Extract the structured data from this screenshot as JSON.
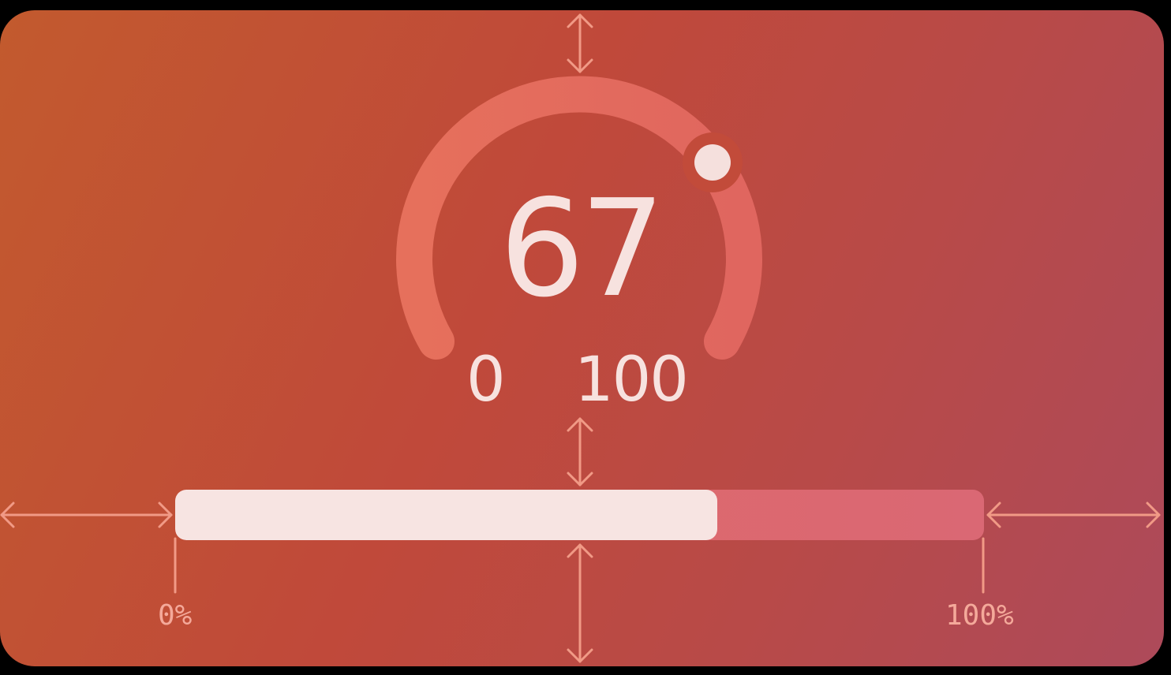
{
  "gauge": {
    "value": "67",
    "min_label": "0",
    "max_label": "100",
    "value_fraction": 0.67
  },
  "progress": {
    "value_fraction": 0.67,
    "min_label": "0%",
    "max_label": "100%"
  },
  "colors": {
    "gradient_start": "#c25a2e",
    "gradient_end": "#ad4a5a",
    "gauge_track": "#e6705c",
    "foreground": "#f7e2df",
    "annotation": "#f4a99a"
  },
  "icons": [
    "spacing-arrow-icon",
    "gauge-knob-icon"
  ]
}
